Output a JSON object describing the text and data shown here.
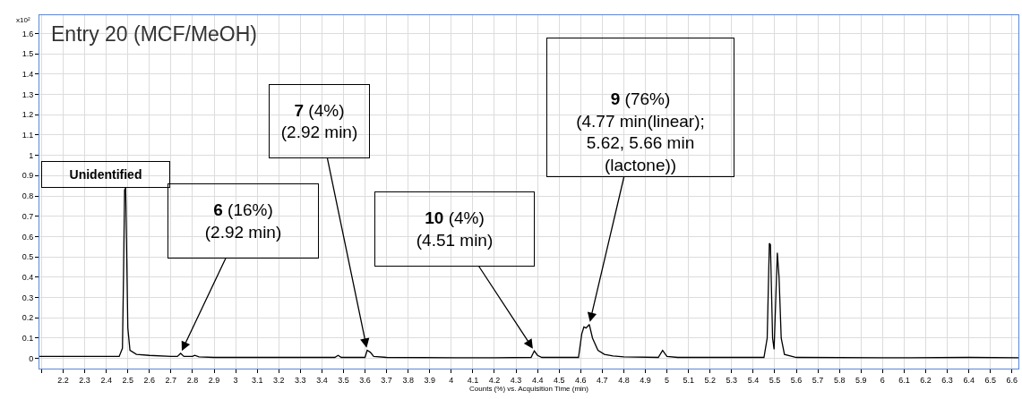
{
  "chart_data": {
    "type": "line",
    "title": "Entry 20 (MCF/MeOH)",
    "xlabel": "Counts (%) vs. Acquisition Time (min)",
    "ylabel": "x10²",
    "x": [
      2.09,
      2.2,
      2.3,
      2.4,
      2.46,
      2.475,
      2.48,
      2.485,
      2.49,
      2.495,
      2.5,
      2.51,
      2.54,
      2.6,
      2.7,
      2.73,
      2.745,
      2.76,
      2.8,
      2.81,
      2.83,
      2.9,
      3.2,
      3.46,
      3.475,
      3.49,
      3.6,
      3.61,
      3.625,
      3.64,
      3.7,
      4.2,
      4.37,
      4.385,
      4.4,
      4.42,
      4.59,
      4.605,
      4.615,
      4.625,
      4.64,
      4.655,
      4.68,
      4.71,
      4.75,
      4.8,
      4.96,
      4.98,
      5.0,
      5.05,
      5.45,
      5.465,
      5.475,
      5.48,
      5.49,
      5.497,
      5.505,
      5.512,
      5.52,
      5.53,
      5.545,
      5.6,
      6.0,
      6.4,
      6.63
    ],
    "series": [
      {
        "color": "#000000",
        "values": [
          0.01,
          0.01,
          0.01,
          0.01,
          0.01,
          0.05,
          0.4,
          0.83,
          0.84,
          0.5,
          0.15,
          0.04,
          0.02,
          0.015,
          0.01,
          0.01,
          0.025,
          0.01,
          0.01,
          0.015,
          0.008,
          0.005,
          0.005,
          0.005,
          0.015,
          0.005,
          0.005,
          0.04,
          0.03,
          0.01,
          0.005,
          0.003,
          0.005,
          0.037,
          0.015,
          0.005,
          0.005,
          0.12,
          0.155,
          0.15,
          0.167,
          0.1,
          0.04,
          0.02,
          0.012,
          0.008,
          0.005,
          0.04,
          0.01,
          0.005,
          0.005,
          0.1,
          0.567,
          0.56,
          0.1,
          0.045,
          0.3,
          0.52,
          0.4,
          0.1,
          0.02,
          0.005,
          0.003,
          0.005,
          0.003
        ]
      }
    ],
    "xlim": [
      2.09,
      6.63
    ],
    "ylim": [
      -0.05,
      1.69
    ],
    "xticks": [
      {
        "value": 2.1,
        "label": null
      },
      2.2,
      2.3,
      2.4,
      2.5,
      2.6,
      2.7,
      2.8,
      2.9,
      3,
      3.1,
      3.2,
      3.3,
      3.4,
      3.5,
      3.6,
      3.7,
      3.8,
      3.9,
      4,
      4.1,
      4.2,
      4.3,
      4.4,
      4.5,
      4.6,
      4.7,
      4.8,
      4.9,
      5,
      5.1,
      5.2,
      5.3,
      5.4,
      5.5,
      5.6,
      5.7,
      5.8,
      5.9,
      6,
      6.1,
      6.2,
      6.3,
      6.4,
      6.5,
      6.6
    ],
    "yticks": [
      0,
      0.1,
      0.2,
      0.3,
      0.4,
      0.5,
      0.6,
      0.7,
      0.8,
      0.9,
      1,
      1.1,
      1.2,
      1.3,
      1.4,
      1.5,
      1.6
    ],
    "grid": true,
    "marker": "none",
    "line_style": "solid",
    "annotations": [
      {
        "text": "Unidentified",
        "x": 2.487,
        "y": 0.84
      },
      {
        "text": "6 (16%)\n(2.92 min)",
        "x": 2.745,
        "y": 0.025
      },
      {
        "text": "7 (4%)\n(2.92 min)",
        "x": 3.61,
        "y": 0.04
      },
      {
        "text": "10 (4%)\n(4.51 min)",
        "x": 4.385,
        "y": 0.037
      },
      {
        "text": "9 (76%)\n(4.77 min(linear);\n5.62, 5.66 min\n(lactone))",
        "x": 4.64,
        "y": 0.167
      }
    ]
  }
}
